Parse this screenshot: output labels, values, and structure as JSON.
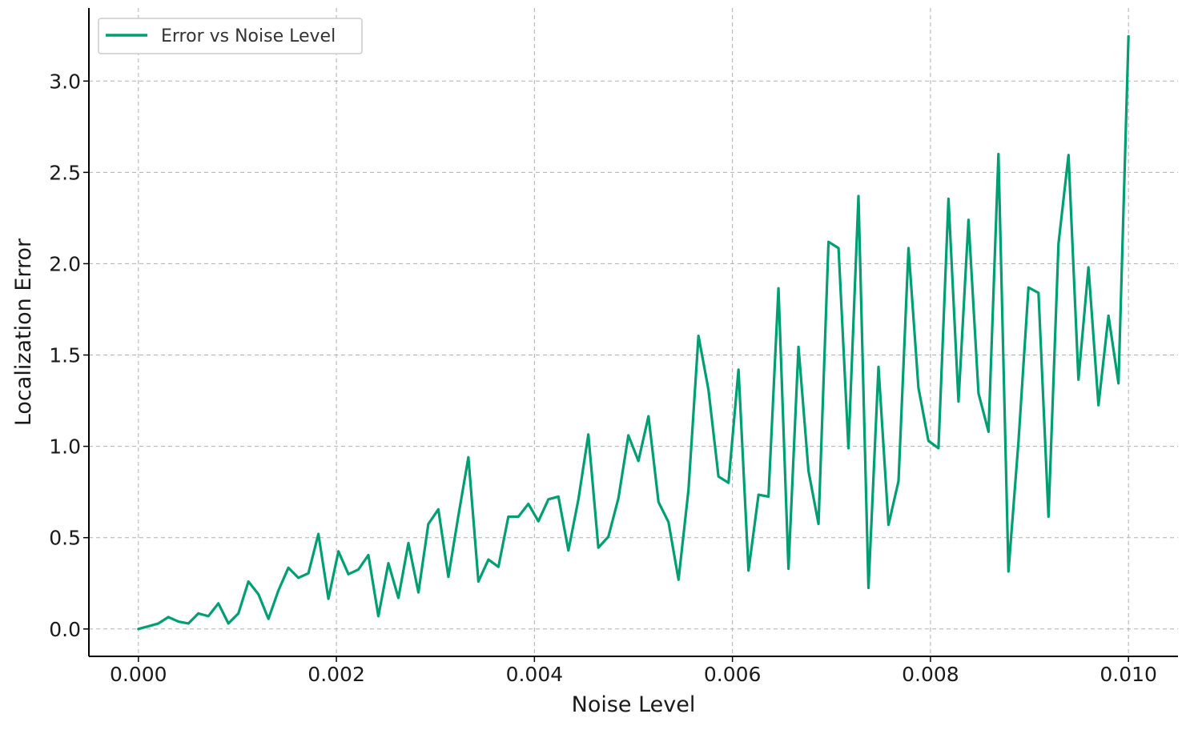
{
  "chart_data": {
    "type": "line",
    "title": "",
    "xlabel": "Noise Level",
    "ylabel": "Localization Error",
    "xlim": [
      -0.0005,
      0.0105
    ],
    "ylim": [
      -0.15,
      3.4
    ],
    "x_ticks": [
      0.0,
      0.002,
      0.004,
      0.006,
      0.008,
      0.01
    ],
    "x_tick_labels": [
      "0.000",
      "0.002",
      "0.004",
      "0.006",
      "0.008",
      "0.010"
    ],
    "y_ticks": [
      0.0,
      0.5,
      1.0,
      1.5,
      2.0,
      2.5,
      3.0
    ],
    "y_tick_labels": [
      "0.0",
      "0.5",
      "1.0",
      "1.5",
      "2.0",
      "2.5",
      "3.0"
    ],
    "grid": true,
    "legend_position": "top-left",
    "series": [
      {
        "name": "Error vs Noise Level",
        "color": "#009e73",
        "x": [
          0.0,
          0.000101,
          0.000202,
          0.000303,
          0.000404,
          0.000505,
          0.000606,
          0.000707,
          0.000808,
          0.000909,
          0.00101,
          0.001111,
          0.001212,
          0.001313,
          0.001414,
          0.001515,
          0.001616,
          0.001717,
          0.001818,
          0.001919,
          0.00202,
          0.002121,
          0.002222,
          0.002323,
          0.002424,
          0.002525,
          0.002626,
          0.002727,
          0.002828,
          0.002929,
          0.00303,
          0.003131,
          0.003232,
          0.003333,
          0.003434,
          0.003535,
          0.003636,
          0.003737,
          0.003838,
          0.003939,
          0.00404,
          0.004141,
          0.004242,
          0.004343,
          0.004444,
          0.004545,
          0.004646,
          0.004747,
          0.004848,
          0.004949,
          0.00505,
          0.005152,
          0.005253,
          0.005354,
          0.005455,
          0.005556,
          0.005657,
          0.005758,
          0.005859,
          0.00596,
          0.006061,
          0.006162,
          0.006263,
          0.006364,
          0.006465,
          0.006566,
          0.006667,
          0.006768,
          0.006869,
          0.00697,
          0.007071,
          0.007172,
          0.007273,
          0.007374,
          0.007475,
          0.007576,
          0.007677,
          0.007778,
          0.007879,
          0.00798,
          0.008081,
          0.008182,
          0.008283,
          0.008384,
          0.008485,
          0.008586,
          0.008687,
          0.008788,
          0.008889,
          0.00899,
          0.009091,
          0.009192,
          0.009293,
          0.009394,
          0.009495,
          0.009596,
          0.009697,
          0.009798,
          0.009899,
          0.01
        ],
        "y": [
          0.0,
          0.015,
          0.03,
          0.065,
          0.04,
          0.03,
          0.085,
          0.07,
          0.14,
          0.03,
          0.085,
          0.26,
          0.19,
          0.055,
          0.21,
          0.335,
          0.28,
          0.305,
          0.52,
          0.165,
          0.425,
          0.3,
          0.325,
          0.405,
          0.07,
          0.36,
          0.17,
          0.47,
          0.2,
          0.575,
          0.655,
          0.285,
          0.62,
          0.94,
          0.26,
          0.38,
          0.34,
          0.615,
          0.615,
          0.685,
          0.59,
          0.71,
          0.725,
          0.43,
          0.71,
          1.065,
          0.445,
          0.505,
          0.715,
          1.06,
          0.92,
          1.165,
          0.695,
          0.585,
          0.27,
          0.76,
          1.605,
          1.31,
          0.835,
          0.8,
          1.42,
          0.32,
          0.735,
          0.725,
          1.865,
          0.33,
          1.545,
          0.865,
          0.575,
          2.12,
          2.085,
          0.99,
          2.37,
          0.225,
          1.435,
          0.57,
          0.81,
          2.085,
          1.32,
          1.03,
          0.99,
          2.355,
          1.245,
          2.24,
          1.29,
          1.08,
          2.6,
          0.315,
          1.025,
          1.87,
          1.84,
          0.615,
          2.11,
          2.595,
          1.365,
          1.98,
          1.225,
          1.715,
          1.345,
          3.245
        ]
      }
    ]
  }
}
